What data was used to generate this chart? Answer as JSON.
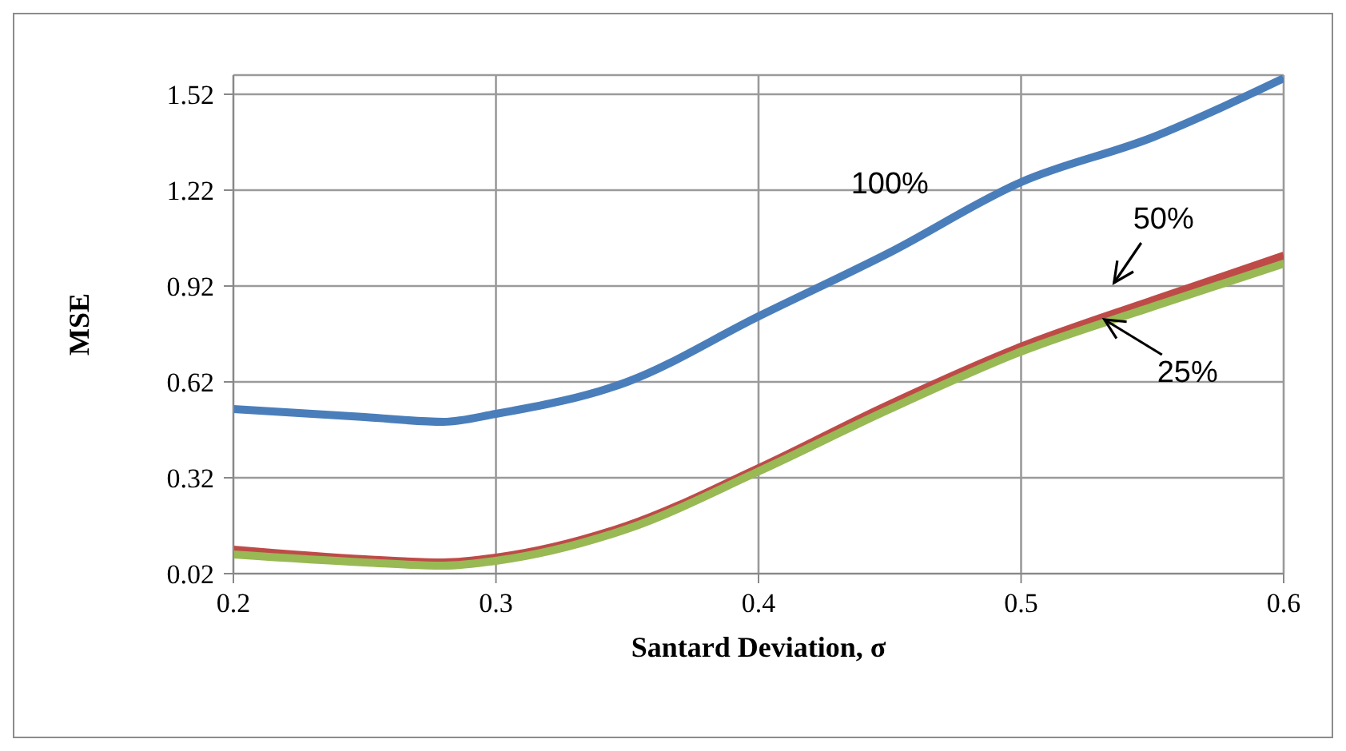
{
  "chart_data": {
    "type": "line",
    "xlabel": "Santard Deviation, σ",
    "ylabel": "MSE",
    "x": [
      0.2,
      0.25,
      0.28,
      0.3,
      0.35,
      0.4,
      0.45,
      0.5,
      0.55,
      0.6
    ],
    "series": [
      {
        "name": "100%",
        "color": "#4a7ebb",
        "values": [
          0.535,
          0.51,
          0.495,
          0.52,
          0.62,
          0.825,
          1.025,
          1.245,
          1.385,
          1.57
        ]
      },
      {
        "name": "50%",
        "color": "#be4b48",
        "values": [
          0.095,
          0.065,
          0.055,
          0.07,
          0.17,
          0.35,
          0.55,
          0.73,
          0.875,
          1.015
        ]
      },
      {
        "name": "25%",
        "color": "#98b954",
        "values": [
          0.08,
          0.055,
          0.045,
          0.06,
          0.16,
          0.34,
          0.535,
          0.715,
          0.855,
          0.99
        ]
      }
    ],
    "xlim": [
      0.2,
      0.6
    ],
    "xticks": [
      0.2,
      0.3,
      0.4,
      0.5,
      0.6
    ],
    "ylim": [
      0.02,
      1.58
    ],
    "yticks": [
      0.02,
      0.32,
      0.62,
      0.92,
      1.22,
      1.52
    ],
    "grid": true,
    "marker": "none",
    "line_style": "solid"
  }
}
